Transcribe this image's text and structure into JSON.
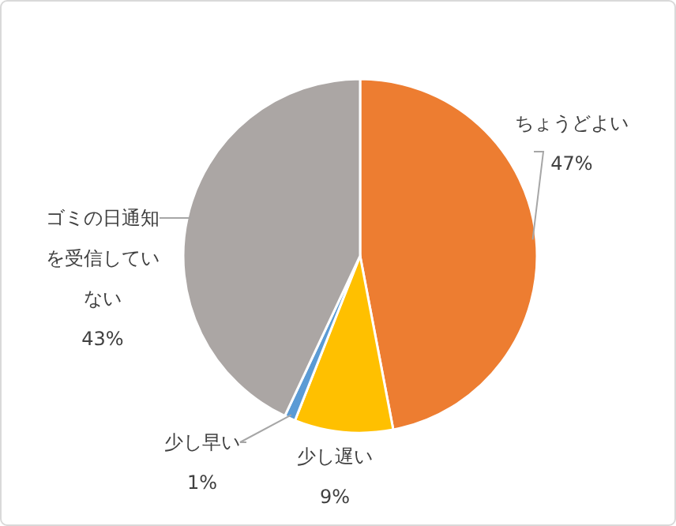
{
  "chart_data": {
    "type": "pie",
    "categories": [
      "ちょうどよい",
      "少し遅い",
      "少し早い",
      "ゴミの日通知を受信していない"
    ],
    "values": [
      47,
      9,
      1,
      43
    ],
    "value_labels": [
      "47%",
      "9%",
      "1%",
      "43%"
    ],
    "colors": [
      "#ed7d31",
      "#ffc000",
      "#5b9bd5",
      "#aba6a4"
    ]
  }
}
